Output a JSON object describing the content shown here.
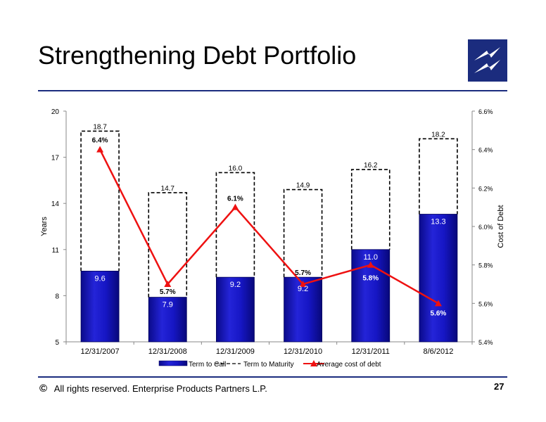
{
  "header": {
    "title": "Strengthening Debt Portfolio"
  },
  "footer": {
    "copyright_symbol": "©",
    "text": "All rights reserved. Enterprise Products Partners L.P.",
    "page_number": "27"
  },
  "colors": {
    "brand_navy": "#1b2c7e",
    "bar_fill": "#1010b0",
    "line_red": "#ee1111"
  },
  "chart_data": {
    "type": "bar",
    "categories": [
      "12/31/2007",
      "12/31/2008",
      "12/31/2009",
      "12/31/2010",
      "12/31/2011",
      "8/6/2012"
    ],
    "ylabel": "Years",
    "y2label": "Cost of Debt",
    "ylim": [
      5,
      20
    ],
    "yticks": [
      "5",
      "8",
      "11",
      "14",
      "17",
      "20"
    ],
    "y2lim": [
      5.4,
      6.6
    ],
    "y2ticks": [
      "5.4%",
      "5.6%",
      "5.8%",
      "6.0%",
      "6.2%",
      "6.4%",
      "6.6%"
    ],
    "grid": false,
    "legend_position": "bottom",
    "series": [
      {
        "name": "Term to Call",
        "kind": "bar",
        "values": [
          9.6,
          7.9,
          9.2,
          9.2,
          11.0,
          13.3
        ],
        "labels": [
          "9.6",
          "7.9",
          "9.2",
          "9.2",
          "11.0",
          "13.3"
        ]
      },
      {
        "name": "Term to Maturity",
        "kind": "dashed-bar",
        "values": [
          18.7,
          14.7,
          16.0,
          14.9,
          16.2,
          18.2
        ],
        "labels": [
          "18.7",
          "14.7",
          "16.0",
          "14.9",
          "16.2",
          "18.2"
        ]
      },
      {
        "name": "Average cost of debt",
        "kind": "line",
        "axis": "secondary",
        "values": [
          6.4,
          5.7,
          6.1,
          5.7,
          5.8,
          5.6
        ],
        "labels": [
          "6.4%",
          "5.7%",
          "6.1%",
          "5.7%",
          "5.8%",
          "5.6%"
        ]
      }
    ]
  }
}
